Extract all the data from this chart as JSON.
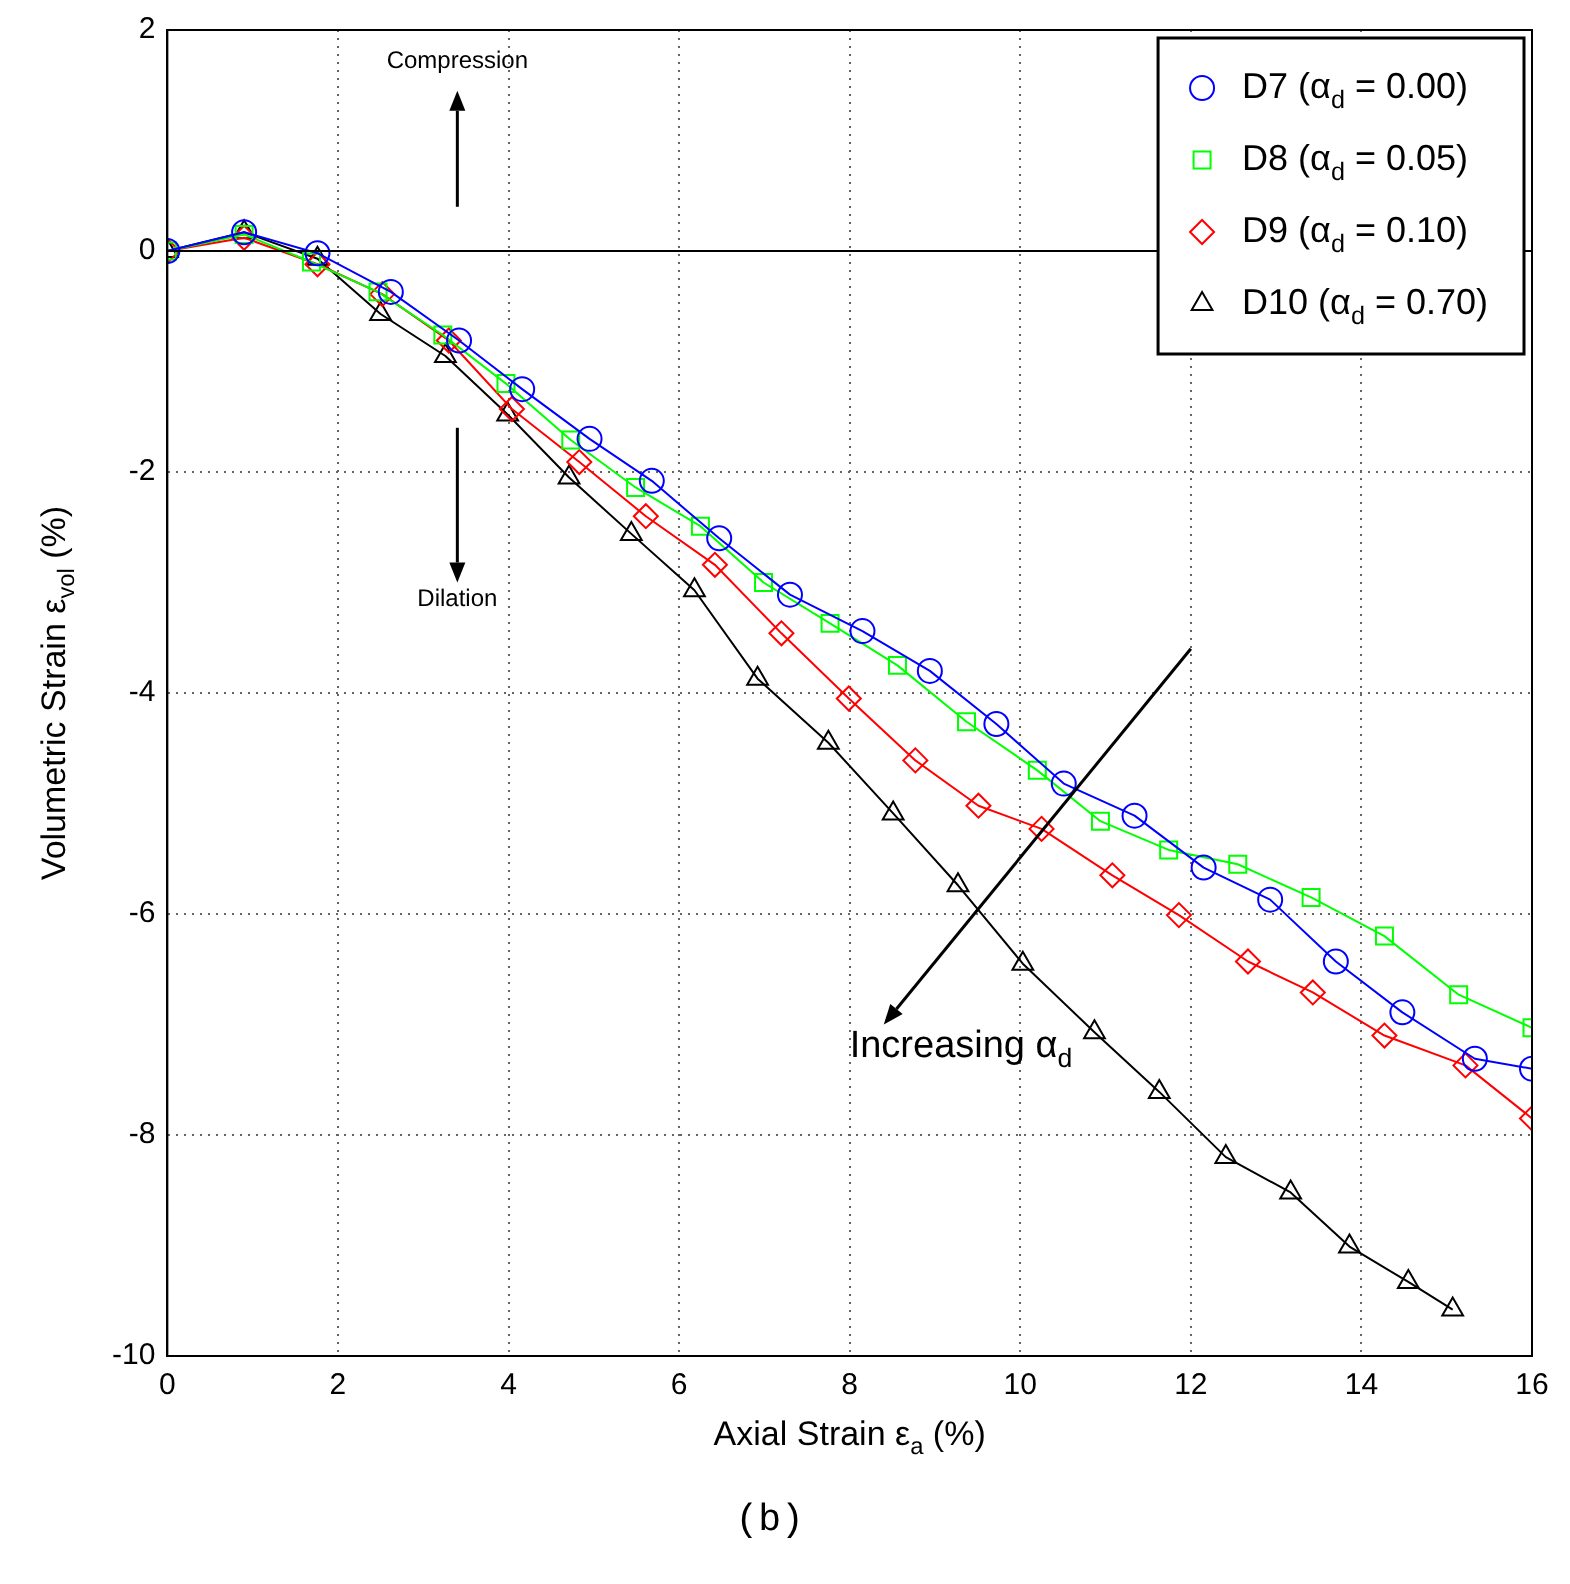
{
  "chart_data": {
    "type": "line",
    "xlabel": "Axial Strain ε$_{a}$ (%)",
    "ylabel": "Volumetric Strain ε$_{vol}$ (%)",
    "xlim": [
      0,
      16
    ],
    "xticks": [
      0,
      2,
      4,
      6,
      8,
      10,
      12,
      14,
      16
    ],
    "ylim": [
      -10,
      2
    ],
    "yticks": [
      -10,
      -8,
      -6,
      -4,
      -2,
      0,
      2
    ],
    "grid": true,
    "legend": "top right",
    "line_style": "solid",
    "ref_lines": [
      {
        "axis": "y",
        "value": 0,
        "color": "#000000"
      }
    ],
    "annotations": [
      "Compression",
      "Dilation",
      "Increasing α$_{d}$",
      "(b)"
    ],
    "series": [
      {
        "name": "D7 (α$_{d}$ = 0.00)",
        "color": "#0000ff",
        "marker": "circle",
        "x": [
          0,
          0.9,
          1.76,
          2.62,
          3.42,
          4.16,
          4.95,
          5.68,
          6.47,
          7.3,
          8.15,
          8.94,
          9.72,
          10.51,
          11.34,
          12.15,
          12.93,
          13.7,
          14.48,
          15.33,
          16
        ],
        "values": [
          0,
          0.17,
          -0.02,
          -0.37,
          -0.81,
          -1.25,
          -1.7,
          -2.08,
          -2.6,
          -3.11,
          -3.44,
          -3.8,
          -4.28,
          -4.82,
          -5.11,
          -5.58,
          -5.87,
          -6.43,
          -6.89,
          -7.31,
          -7.4
        ]
      },
      {
        "name": "D8 (α$_{d}$ = 0.05)",
        "color": "#00ff00",
        "marker": "square",
        "x": [
          0,
          0.9,
          1.69,
          2.47,
          3.23,
          3.97,
          4.73,
          5.49,
          6.25,
          6.99,
          7.77,
          8.56,
          9.37,
          10.2,
          10.94,
          11.74,
          12.55,
          13.41,
          14.27,
          15.14,
          16
        ],
        "values": [
          0,
          0.15,
          -0.1,
          -0.37,
          -0.76,
          -1.2,
          -1.71,
          -2.14,
          -2.49,
          -3,
          -3.37,
          -3.75,
          -4.26,
          -4.7,
          -5.16,
          -5.42,
          -5.55,
          -5.85,
          -6.2,
          -6.73,
          -7.03
        ]
      },
      {
        "name": "D9 (α$_{d}$ = 0.10)",
        "color": "#ff0000",
        "marker": "diamond",
        "x": [
          0,
          0.9,
          1.76,
          2.52,
          3.3,
          4.04,
          4.83,
          5.61,
          6.42,
          7.2,
          7.99,
          8.77,
          9.51,
          10.25,
          11.08,
          11.86,
          12.67,
          13.43,
          14.27,
          15.22,
          16
        ],
        "values": [
          0,
          0.12,
          -0.12,
          -0.39,
          -0.81,
          -1.43,
          -1.91,
          -2.4,
          -2.84,
          -3.46,
          -4.05,
          -4.61,
          -5.02,
          -5.23,
          -5.65,
          -6.01,
          -6.43,
          -6.71,
          -7.1,
          -7.37,
          -7.85
        ]
      },
      {
        "name": "D10 (α$_{d}$ = 0.70)",
        "color": "#000000",
        "marker": "triangle",
        "x": [
          0,
          0.9,
          1.76,
          2.5,
          3.26,
          3.99,
          4.71,
          5.44,
          6.18,
          6.92,
          7.75,
          8.51,
          9.27,
          10.03,
          10.87,
          11.63,
          12.41,
          13.17,
          13.86,
          14.55,
          15.07
        ],
        "values": [
          0,
          0.17,
          -0.07,
          -0.57,
          -0.95,
          -1.48,
          -2.05,
          -2.56,
          -3.07,
          -3.87,
          -4.45,
          -5.09,
          -5.74,
          -6.45,
          -7.07,
          -7.61,
          -8.2,
          -8.52,
          -9.01,
          -9.33,
          -9.58
        ]
      }
    ]
  }
}
